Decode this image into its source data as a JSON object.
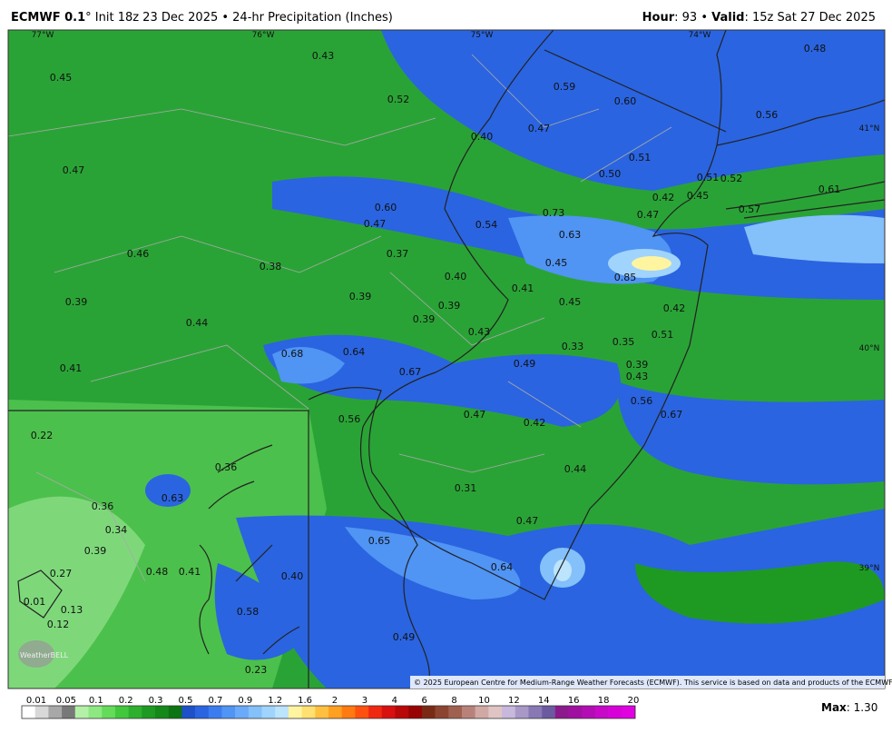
{
  "header": {
    "model": "ECMWF 0.1",
    "title_rest": "° Init 18z 23 Dec 2025 • 24-hr Precipitation (Inches)",
    "hour_label": "Hour",
    "hour_value": ": 93 • ",
    "valid_label": "Valid",
    "valid_value": ": 15z Sat 27 Dec 2025"
  },
  "map": {
    "grid_labels": [
      "77°W",
      "76°W",
      "75°W",
      "74°W",
      "41°N",
      "40°N",
      "39°N"
    ],
    "labels": [
      "0.43",
      "0.45",
      "0.52",
      "0.59",
      "0.60",
      "0.48",
      "0.56",
      "0.40",
      "0.47",
      "0.47",
      "0.51",
      "0.50",
      "0.51",
      "0.52",
      "0.42",
      "0.45",
      "0.61",
      "0.57",
      "0.60",
      "0.73",
      "0.47",
      "0.47",
      "0.54",
      "0.63",
      "0.46",
      "0.38",
      "0.37",
      "0.45",
      "0.85",
      "0.40",
      "0.41",
      "0.39",
      "0.39",
      "0.39",
      "0.45",
      "0.42",
      "0.44",
      "0.39",
      "0.43",
      "0.51",
      "0.33",
      "0.35",
      "0.68",
      "0.64",
      "0.39",
      "0.41",
      "0.67",
      "0.49",
      "0.43",
      "0.56",
      "0.67",
      "0.56",
      "0.47",
      "0.42",
      "0.22",
      "0.36",
      "0.44",
      "0.63",
      "0.31",
      "0.36",
      "0.34",
      "0.47",
      "0.39",
      "0.65",
      "0.64",
      "0.27",
      "0.48",
      "0.41",
      "0.40",
      "0.01",
      "0.13",
      "0.12",
      "0.58",
      "0.49",
      "0.23"
    ],
    "logo": "WeatherBELL",
    "copyright": "© 2025 European Centre for Medium-Range Weather Forecasts (ECMWF). This service is based on data and products of the ECMWF."
  },
  "legend": {
    "ticks": [
      "0.01",
      "0.05",
      "0.1",
      "0.2",
      "0.3",
      "0.5",
      "0.7",
      "0.9",
      "1.2",
      "1.6",
      "2",
      "3",
      "4",
      "6",
      "8",
      "10",
      "12",
      "14",
      "16",
      "18",
      "20"
    ],
    "colors": [
      "#ffffff",
      "#d8d8d8",
      "#a8a8a8",
      "#787878",
      "#b4f0a8",
      "#8ee882",
      "#64dc5a",
      "#42c83c",
      "#2eb02e",
      "#1e9a22",
      "#148818",
      "#0c7410",
      "#1e50c8",
      "#2a64e0",
      "#3c7cf0",
      "#5094f4",
      "#6aaaf8",
      "#84c0fa",
      "#a0d4fc",
      "#bce4fc",
      "#fff4a0",
      "#ffe070",
      "#ffc040",
      "#ffa020",
      "#ff7a10",
      "#ff5010",
      "#f02810",
      "#d81010",
      "#b80808",
      "#980404",
      "#7a2a14",
      "#8c4430",
      "#a06050",
      "#b8827a",
      "#d0a8a4",
      "#e0c4c4",
      "#c8b8dc",
      "#a898c8",
      "#8878b4",
      "#6c5aa0",
      "#8c1a8c",
      "#a010a0",
      "#b40cb4",
      "#c808c8",
      "#d800d8",
      "#e000e0"
    ],
    "max_label": "Max",
    "max_value": ": 1.30"
  }
}
